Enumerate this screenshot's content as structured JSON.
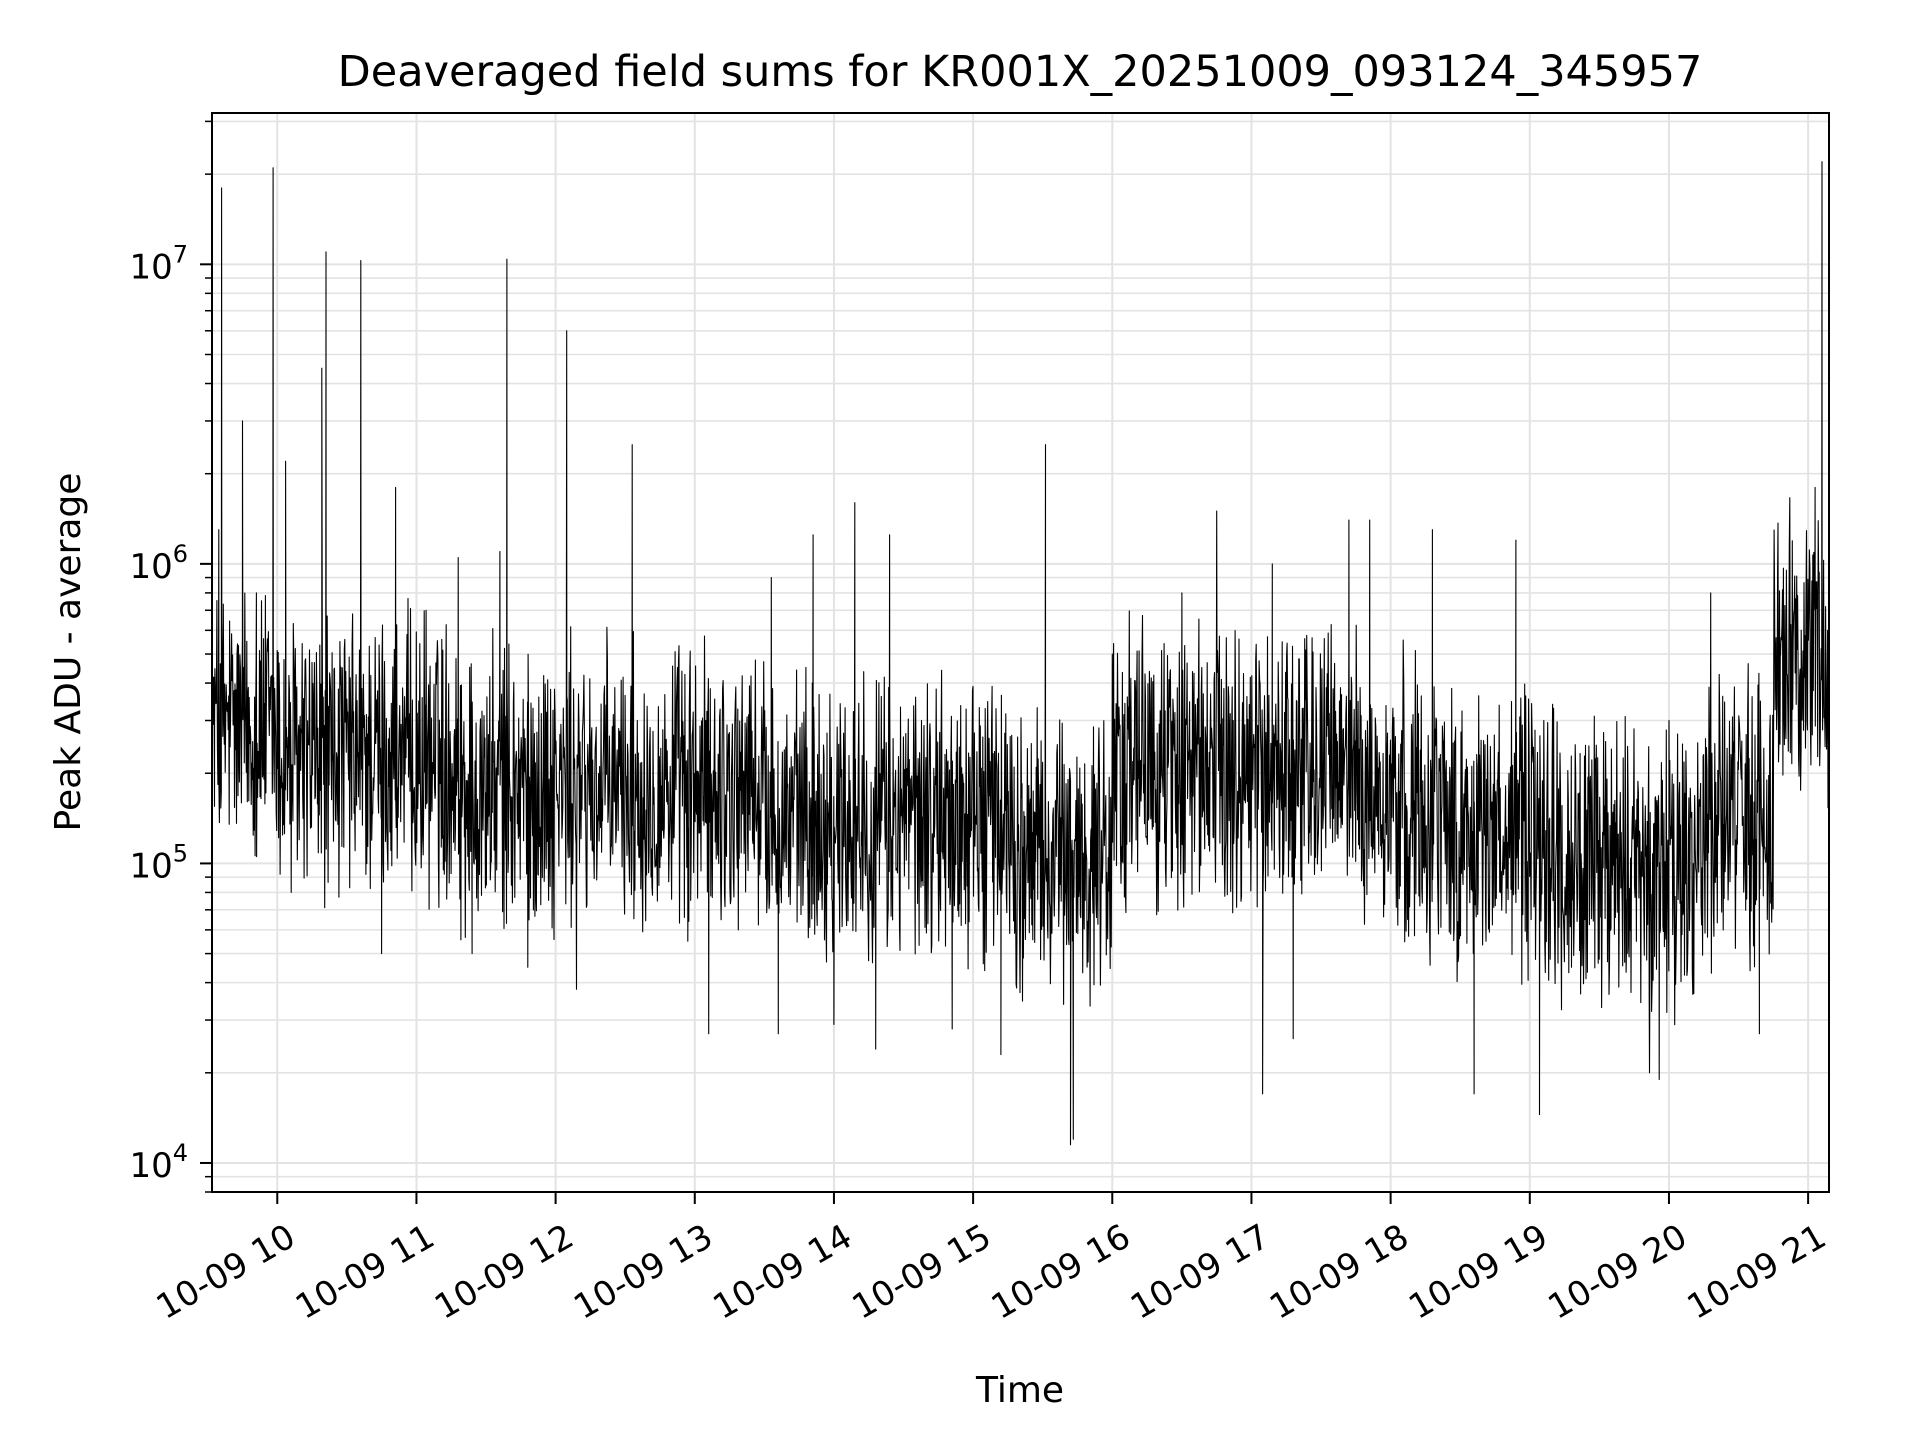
{
  "chart_data": {
    "type": "line",
    "title": "Deaveraged field sums for KR001X_20251009_093124_345957",
    "xlabel": "Time",
    "ylabel": "Peak ADU - average",
    "yscale": "log",
    "ylim": [
      8000,
      32000000
    ],
    "xlim_hours": [
      9.531,
      21.15
    ],
    "grid": true,
    "line_color": "#000000",
    "x_ticks": [
      {
        "label": "10-09 10",
        "hour": 10
      },
      {
        "label": "10-09 11",
        "hour": 11
      },
      {
        "label": "10-09 12",
        "hour": 12
      },
      {
        "label": "10-09 13",
        "hour": 13
      },
      {
        "label": "10-09 14",
        "hour": 14
      },
      {
        "label": "10-09 15",
        "hour": 15
      },
      {
        "label": "10-09 16",
        "hour": 16
      },
      {
        "label": "10-09 17",
        "hour": 17
      },
      {
        "label": "10-09 18",
        "hour": 18
      },
      {
        "label": "10-09 19",
        "hour": 19
      },
      {
        "label": "10-09 20",
        "hour": 20
      },
      {
        "label": "10-09 21",
        "hour": 21
      }
    ],
    "y_ticks": [
      {
        "base": "10",
        "exp": "4",
        "value": 10000
      },
      {
        "base": "10",
        "exp": "5",
        "value": 100000
      },
      {
        "base": "10",
        "exp": "6",
        "value": 1000000
      },
      {
        "base": "10",
        "exp": "7",
        "value": 10000000
      }
    ],
    "series": [
      {
        "name": "Peak ADU - average",
        "points": [
          [
            9.55,
            300000
          ],
          [
            9.58,
            1300000
          ],
          [
            9.6,
            18000000
          ],
          [
            9.62,
            250000
          ],
          [
            9.75,
            3000000
          ],
          [
            9.85,
            800000
          ],
          [
            9.97,
            21000000
          ],
          [
            10.06,
            2200000
          ],
          [
            10.1,
            80000
          ],
          [
            10.32,
            4500000
          ],
          [
            10.35,
            11000000
          ],
          [
            10.6,
            10300000
          ],
          [
            10.75,
            50000
          ],
          [
            10.85,
            1800000
          ],
          [
            11.3,
            1050000
          ],
          [
            11.4,
            50000
          ],
          [
            11.6,
            1100000
          ],
          [
            11.65,
            10400000
          ],
          [
            11.8,
            45000
          ],
          [
            12.08,
            6000000
          ],
          [
            12.15,
            38000
          ],
          [
            12.55,
            2500000
          ],
          [
            12.95,
            55000
          ],
          [
            13.1,
            27000
          ],
          [
            13.55,
            900000
          ],
          [
            13.6,
            27000
          ],
          [
            13.85,
            1250000
          ],
          [
            14.0,
            29000
          ],
          [
            14.15,
            1600000
          ],
          [
            14.3,
            24000
          ],
          [
            14.4,
            1250000
          ],
          [
            14.85,
            28000
          ],
          [
            15.2,
            23000
          ],
          [
            15.52,
            2500000
          ],
          [
            15.7,
            11500
          ],
          [
            15.72,
            12000
          ],
          [
            16.0,
            500000
          ],
          [
            16.5,
            800000
          ],
          [
            16.75,
            1500000
          ],
          [
            17.08,
            17000
          ],
          [
            17.15,
            1000000
          ],
          [
            17.3,
            26000
          ],
          [
            17.7,
            1400000
          ],
          [
            17.85,
            1400000
          ],
          [
            18.3,
            1300000
          ],
          [
            18.6,
            17000
          ],
          [
            18.9,
            1200000
          ],
          [
            19.07,
            14500
          ],
          [
            19.3,
            45000
          ],
          [
            19.7,
            50000
          ],
          [
            19.86,
            20000
          ],
          [
            19.93,
            19000
          ],
          [
            20.0,
            300000
          ],
          [
            20.3,
            800000
          ],
          [
            20.65,
            27000
          ],
          [
            20.8,
            500000
          ],
          [
            20.95,
            600000
          ],
          [
            21.05,
            1800000
          ],
          [
            21.1,
            22000000
          ],
          [
            21.14,
            600000
          ]
        ]
      }
    ]
  }
}
